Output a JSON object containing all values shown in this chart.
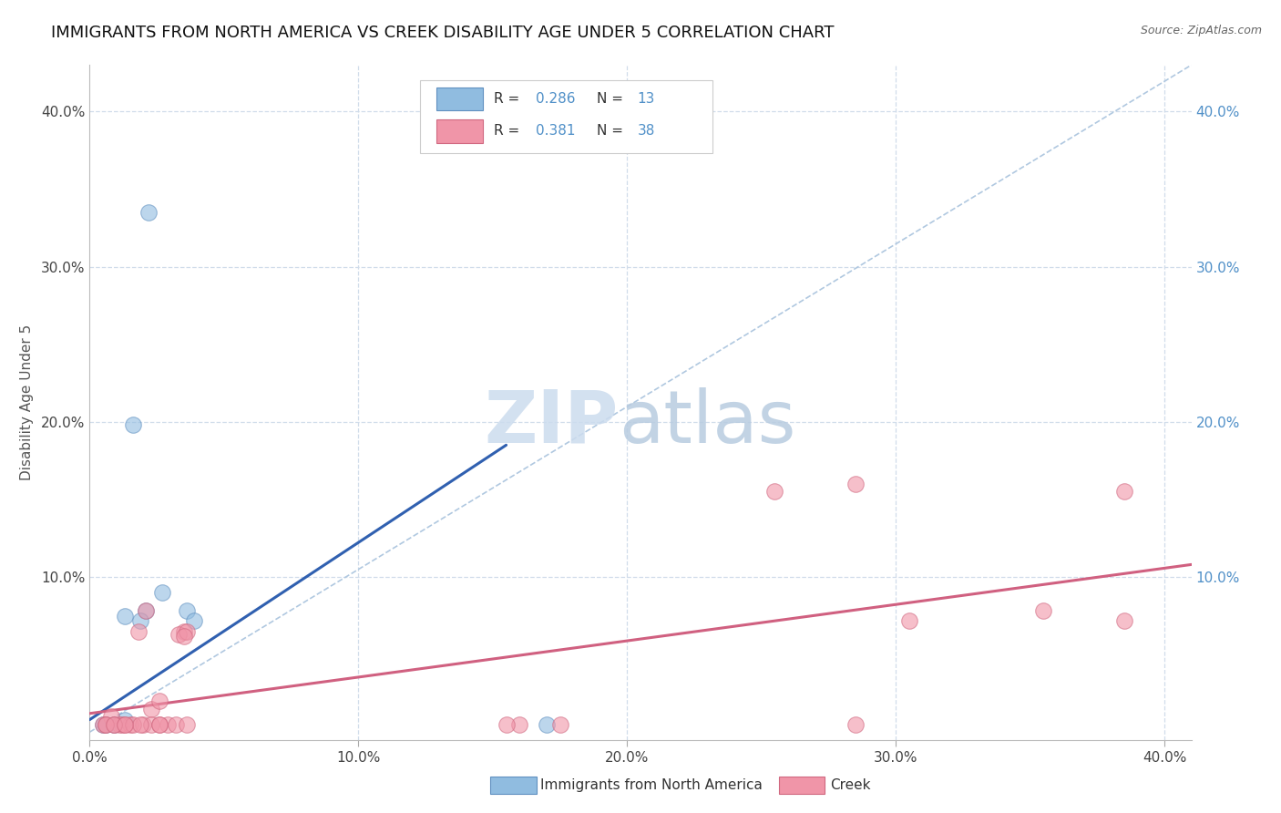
{
  "title": "IMMIGRANTS FROM NORTH AMERICA VS CREEK DISABILITY AGE UNDER 5 CORRELATION CHART",
  "source": "Source: ZipAtlas.com",
  "ylabel": "Disability Age Under 5",
  "xlim": [
    0.0,
    0.41
  ],
  "ylim": [
    -0.005,
    0.43
  ],
  "xticks": [
    0.0,
    0.1,
    0.2,
    0.3,
    0.4
  ],
  "xticklabels": [
    "0.0%",
    "10.0%",
    "20.0%",
    "30.0%",
    "40.0%"
  ],
  "yticks": [
    0.0,
    0.1,
    0.2,
    0.3,
    0.4
  ],
  "yticklabels": [
    "",
    "10.0%",
    "20.0%",
    "30.0%",
    "40.0%"
  ],
  "right_yticks": [
    0.1,
    0.2,
    0.3,
    0.4
  ],
  "right_yticklabels": [
    "10.0%",
    "20.0%",
    "30.0%",
    "40.0%"
  ],
  "blue_scatter_x": [
    0.022,
    0.016,
    0.013,
    0.027,
    0.021,
    0.019,
    0.009,
    0.006,
    0.013,
    0.036,
    0.039,
    0.17,
    0.005
  ],
  "blue_scatter_y": [
    0.335,
    0.198,
    0.075,
    0.09,
    0.078,
    0.072,
    0.005,
    0.005,
    0.008,
    0.078,
    0.072,
    0.005,
    0.005
  ],
  "pink_scatter_x": [
    0.005,
    0.008,
    0.012,
    0.015,
    0.02,
    0.023,
    0.026,
    0.029,
    0.032,
    0.035,
    0.018,
    0.021,
    0.033,
    0.036,
    0.16,
    0.175,
    0.255,
    0.285,
    0.355,
    0.385,
    0.011,
    0.006,
    0.009,
    0.013,
    0.023,
    0.026,
    0.016,
    0.019,
    0.006,
    0.009,
    0.013,
    0.026,
    0.036,
    0.155,
    0.285,
    0.305,
    0.385,
    0.035
  ],
  "pink_scatter_y": [
    0.005,
    0.01,
    0.005,
    0.005,
    0.005,
    0.015,
    0.02,
    0.005,
    0.005,
    0.065,
    0.065,
    0.078,
    0.063,
    0.065,
    0.005,
    0.005,
    0.155,
    0.16,
    0.078,
    0.072,
    0.005,
    0.005,
    0.005,
    0.005,
    0.005,
    0.005,
    0.005,
    0.005,
    0.005,
    0.005,
    0.005,
    0.005,
    0.005,
    0.005,
    0.005,
    0.072,
    0.155,
    0.062
  ],
  "blue_line_x": [
    0.0,
    0.155
  ],
  "blue_line_y": [
    0.008,
    0.185
  ],
  "pink_line_x": [
    0.0,
    0.41
  ],
  "pink_line_y": [
    0.012,
    0.108
  ],
  "diag_line_x": [
    0.0,
    0.41
  ],
  "diag_line_y": [
    0.0,
    0.43
  ],
  "scatter_size": 160,
  "scatter_alpha": 0.6,
  "blue_color": "#90bce0",
  "blue_edge": "#6090c0",
  "pink_color": "#f095a8",
  "pink_edge": "#d06880",
  "blue_line_color": "#3060b0",
  "pink_line_color": "#d06080",
  "diag_color": "#b0c8e0",
  "grid_color": "#d0dcea",
  "background_color": "#ffffff",
  "title_fontsize": 13,
  "tick_fontsize": 11,
  "label_fontsize": 11,
  "legend_R_color": "#5090c8",
  "legend_text_color": "#333333",
  "source_color": "#666666",
  "ylabel_color": "#555555",
  "watermark_zip_color": "#ccdcee",
  "watermark_atlas_color": "#b8cce0"
}
